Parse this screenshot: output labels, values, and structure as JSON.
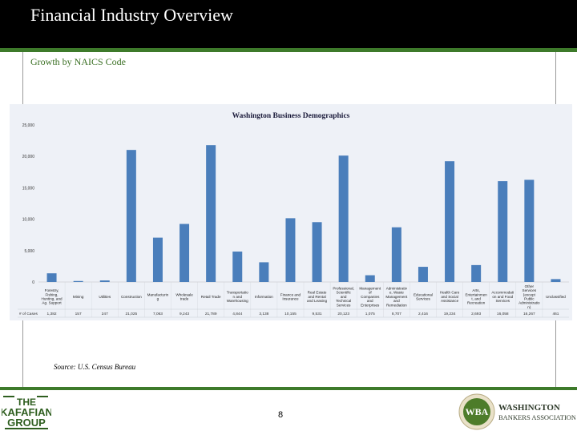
{
  "slide": {
    "title": "Financial Industry Overview",
    "subtitle": "Growth by NAICS Code",
    "source": "Source: U.S. Census Bureau",
    "page_number": "8"
  },
  "logos": {
    "left": "THE KAFAFIAN GROUP",
    "right_badge": "WBA",
    "right_line1": "WASHINGTON",
    "right_line2": "BANKERS ASSOCIATION"
  },
  "colors": {
    "header_bg": "#000000",
    "accent_green": "#3d7a2a",
    "bar": "#4a7ebb",
    "plot_bg": "#eef1f7"
  },
  "chart_data": {
    "type": "bar",
    "title": "Washington Business Demographics",
    "xlabel": "",
    "ylabel": "",
    "ylim": [
      0,
      25000
    ],
    "yticks": [
      "0",
      "5,000",
      "10,000",
      "15,000",
      "20,000",
      "25,000"
    ],
    "ytick_values": [
      0,
      5000,
      10000,
      15000,
      20000,
      25000
    ],
    "row_label": "# of Cases",
    "categories": [
      [
        "Forestry,",
        "Fishing,",
        "Hunting, and",
        "Ag. Support"
      ],
      [
        "Mining"
      ],
      [
        "Utilities"
      ],
      [
        "Construction"
      ],
      [
        "Manufacturin",
        "g"
      ],
      [
        "Wholesale",
        "trade"
      ],
      [
        "Retail Trade"
      ],
      [
        "Transportatio",
        "n and",
        "Warehousing"
      ],
      [
        "Information"
      ],
      [
        "Finance and",
        "Insurance"
      ],
      [
        "Real Estate",
        "and Rental",
        "and Leasing"
      ],
      [
        "Professional,",
        "Scientific",
        "and",
        "Technical",
        "Services"
      ],
      [
        "Management",
        "of",
        "Companies",
        "and",
        "Enterprises"
      ],
      [
        "Administrativ",
        "e, Waste",
        "Management",
        "and",
        "Remediation"
      ],
      [
        "Educational",
        "Services"
      ],
      [
        "Health Care",
        "and Social",
        "Assistance"
      ],
      [
        "Arts,",
        "Entertainmen",
        "t, and",
        "Recreation"
      ],
      [
        "Accommodati",
        "on and Food",
        "Services"
      ],
      [
        "Other",
        "Services",
        "(except",
        "Public",
        "Administratio",
        "n)"
      ],
      [
        "Unclassified"
      ]
    ],
    "values": [
      1382,
      157,
      247,
      21025,
      7063,
      9243,
      21789,
      4844,
      3138,
      10155,
      9531,
      20123,
      1075,
      8707,
      2416,
      19234,
      2693,
      16058,
      16267,
      461
    ],
    "value_labels": [
      "1,382",
      "157",
      "247",
      "21,025",
      "7,063",
      "9,243",
      "21,789",
      "4,844",
      "3,138",
      "10,155",
      "9,531",
      "20,123",
      "1,075",
      "8,707",
      "2,416",
      "19,234",
      "2,693",
      "16,058",
      "16,267",
      "461"
    ],
    "grid": false,
    "legend": "none"
  }
}
